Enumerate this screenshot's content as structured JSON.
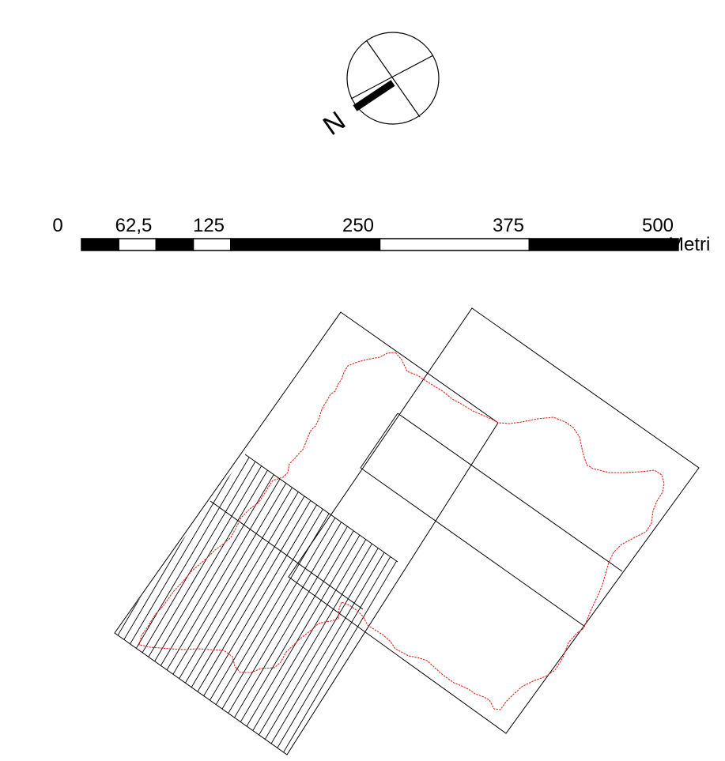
{
  "north_arrow": {
    "letter": "N"
  },
  "scale_bar": {
    "ticks": [
      "0",
      "62,5",
      "125",
      "250",
      "375",
      "500"
    ],
    "unit": "Metri",
    "segments": [
      {
        "from": 0,
        "to": 31.25,
        "fill": "black"
      },
      {
        "from": 31.25,
        "to": 62.5,
        "fill": "white"
      },
      {
        "from": 62.5,
        "to": 93.75,
        "fill": "black"
      },
      {
        "from": 93.75,
        "to": 125,
        "fill": "white"
      },
      {
        "from": 125,
        "to": 250,
        "fill": "black"
      },
      {
        "from": 250,
        "to": 375,
        "fill": "white"
      },
      {
        "from": 375,
        "to": 500,
        "fill": "black"
      }
    ]
  },
  "map": {
    "grid_stroke": "#000000",
    "boundary_color": "#e8231f",
    "hatch_stroke": "#000000"
  }
}
